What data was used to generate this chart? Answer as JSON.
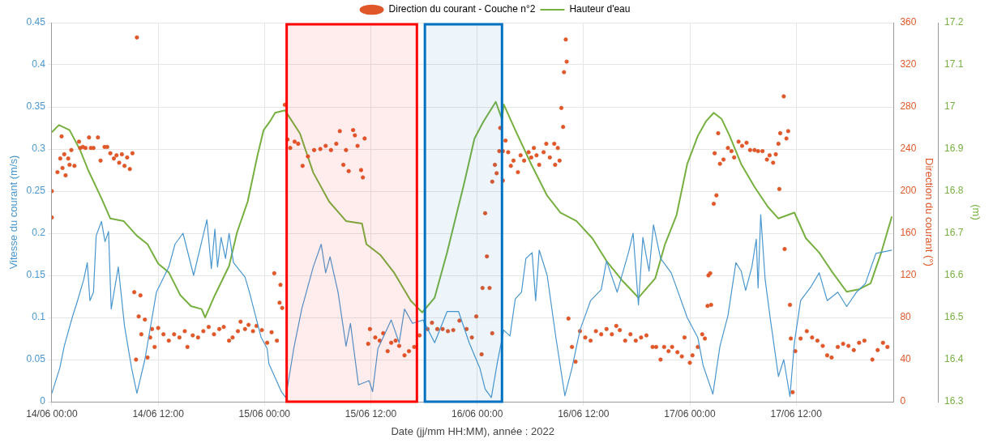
{
  "chart_data": {
    "type": "line",
    "xlabel": "Date (jj/mm HH:MM), année : 2022",
    "ylabel": "Vitesse du courant (m/s)",
    "y2label": "Direction du courant (°)",
    "y3label": "(m)",
    "xlim": [
      "2022-06-14T00:00",
      "2022-06-17T23:00"
    ],
    "xticks": [
      {
        "value": "2022-06-14T00:00",
        "label": "14/06 00:00"
      },
      {
        "value": "2022-06-14T12:00",
        "label": "14/06 12:00"
      },
      {
        "value": "2022-06-15T00:00",
        "label": "15/06 00:00"
      },
      {
        "value": "2022-06-15T12:00",
        "label": "15/06 12:00"
      },
      {
        "value": "2022-06-16T00:00",
        "label": "16/06 00:00"
      },
      {
        "value": "2022-06-16T12:00",
        "label": "16/06 12:00"
      },
      {
        "value": "2022-06-17T00:00",
        "label": "17/06 00:00"
      },
      {
        "value": "2022-06-17T12:00",
        "label": "17/06 12:00"
      }
    ],
    "ylim": [
      0,
      0.45
    ],
    "yticks": [
      0,
      0.05,
      0.1,
      0.15,
      0.2,
      0.25,
      0.3,
      0.35,
      0.4,
      0.45
    ],
    "y2lim": [
      0,
      360
    ],
    "y2ticks": [
      0,
      40,
      80,
      120,
      160,
      200,
      240,
      280,
      320,
      360
    ],
    "y3lim": [
      16.3,
      17.2
    ],
    "y3ticks": [
      16.3,
      16.4,
      16.5,
      16.6,
      16.7,
      16.8,
      16.9,
      17,
      17.1,
      17.2
    ],
    "grid": true,
    "legend": "top",
    "bands": [
      {
        "axis": "x",
        "from": "2022-06-15T02:30",
        "to": "2022-06-15T17:12",
        "color": "#ff0000"
      },
      {
        "axis": "x",
        "from": "2022-06-15T18:06",
        "to": "2022-06-16T02:48",
        "color": "#0070c0"
      }
    ],
    "series": [
      {
        "type": "line",
        "color": "#4a97cf",
        "x": [
          "2022-06-14T00:00",
          "2022-06-14T00:54",
          "2022-06-14T01:24",
          "2022-06-14T02:18",
          "2022-06-14T02:54",
          "2022-06-14T03:36",
          "2022-06-14T04:00",
          "2022-06-14T04:18",
          "2022-06-14T04:42",
          "2022-06-14T05:00",
          "2022-06-14T05:36",
          "2022-06-14T06:00",
          "2022-06-14T06:24",
          "2022-06-14T06:42",
          "2022-06-14T07:30",
          "2022-06-14T08:12",
          "2022-06-14T09:00",
          "2022-06-14T09:36",
          "2022-06-14T10:30",
          "2022-06-14T11:48",
          "2022-06-14T13:12",
          "2022-06-14T13:54",
          "2022-06-14T14:48",
          "2022-06-14T16:00",
          "2022-06-14T17:30",
          "2022-06-14T18:00",
          "2022-06-14T18:24",
          "2022-06-14T18:42",
          "2022-06-14T19:06",
          "2022-06-14T19:36",
          "2022-06-14T20:00",
          "2022-06-14T20:30",
          "2022-06-14T21:48",
          "2022-06-14T22:18",
          "2022-06-14T23:36",
          "2022-06-15T00:18",
          "2022-06-15T00:30",
          "2022-06-15T01:54",
          "2022-06-15T02:24",
          "2022-06-15T03:18",
          "2022-06-15T04:12",
          "2022-06-15T05:30",
          "2022-06-15T06:24",
          "2022-06-15T06:54",
          "2022-06-15T07:24",
          "2022-06-15T08:18",
          "2022-06-15T09:12",
          "2022-06-15T09:42",
          "2022-06-15T10:36",
          "2022-06-15T11:48",
          "2022-06-15T12:12",
          "2022-06-15T12:48",
          "2022-06-15T14:18",
          "2022-06-15T15:12",
          "2022-06-15T15:48",
          "2022-06-15T16:42",
          "2022-06-15T17:54",
          "2022-06-15T19:12",
          "2022-06-15T20:36",
          "2022-06-15T21:54",
          "2022-06-15T23:06",
          "2022-06-16T00:18",
          "2022-06-16T00:54",
          "2022-06-16T01:36",
          "2022-06-16T02:18",
          "2022-06-16T03:00",
          "2022-06-16T03:42",
          "2022-06-16T04:18",
          "2022-06-16T05:00",
          "2022-06-16T05:30",
          "2022-06-16T06:12",
          "2022-06-16T06:36",
          "2022-06-16T07:00",
          "2022-06-16T07:54",
          "2022-06-16T08:54",
          "2022-06-16T09:54",
          "2022-06-16T10:42",
          "2022-06-16T11:36",
          "2022-06-16T12:48",
          "2022-06-16T14:00",
          "2022-06-16T14:36",
          "2022-06-16T15:48",
          "2022-06-16T17:06",
          "2022-06-16T17:36",
          "2022-06-16T18:12",
          "2022-06-16T18:42",
          "2022-06-16T19:24",
          "2022-06-16T19:54",
          "2022-06-16T20:42",
          "2022-06-16T21:54",
          "2022-06-16T23:42",
          "2022-06-17T00:54",
          "2022-06-17T01:30",
          "2022-06-17T02:36",
          "2022-06-17T03:24",
          "2022-06-17T04:18",
          "2022-06-17T05:12",
          "2022-06-17T05:48",
          "2022-06-17T06:18",
          "2022-06-17T07:00",
          "2022-06-17T07:30",
          "2022-06-17T07:42",
          "2022-06-17T08:00",
          "2022-06-17T08:30",
          "2022-06-17T09:06",
          "2022-06-17T10:00",
          "2022-06-17T10:36",
          "2022-06-17T11:18",
          "2022-06-17T11:48",
          "2022-06-17T12:30",
          "2022-06-17T13:42",
          "2022-06-17T14:36",
          "2022-06-17T15:30",
          "2022-06-17T16:42",
          "2022-06-17T17:42",
          "2022-06-17T18:48",
          "2022-06-17T19:48",
          "2022-06-17T21:00",
          "2022-06-17T22:48"
        ],
        "values": [
          0.01,
          0.04,
          0.066,
          0.1,
          0.12,
          0.145,
          0.165,
          0.12,
          0.13,
          0.197,
          0.214,
          0.19,
          0.202,
          0.11,
          0.16,
          0.09,
          0.04,
          0.01,
          0.05,
          0.13,
          0.16,
          0.187,
          0.2,
          0.15,
          0.216,
          0.158,
          0.205,
          0.16,
          0.195,
          0.17,
          0.2,
          0.165,
          0.148,
          0.13,
          0.077,
          0.063,
          0.045,
          0.012,
          0.005,
          0.063,
          0.11,
          0.16,
          0.187,
          0.153,
          0.172,
          0.13,
          0.066,
          0.093,
          0.02,
          0.025,
          0.012,
          0.063,
          0.097,
          0.07,
          0.11,
          0.093,
          0.097,
          0.07,
          0.107,
          0.107,
          0.07,
          0.04,
          0.015,
          0.005,
          0.048,
          0.085,
          0.078,
          0.122,
          0.13,
          0.17,
          0.177,
          0.12,
          0.18,
          0.15,
          0.075,
          0.007,
          0.04,
          0.085,
          0.12,
          0.133,
          0.167,
          0.13,
          0.178,
          0.2,
          0.115,
          0.195,
          0.155,
          0.21,
          0.17,
          0.153,
          0.1,
          0.076,
          0.043,
          0.009,
          0.066,
          0.102,
          0.165,
          0.155,
          0.132,
          0.16,
          0.193,
          0.135,
          0.222,
          0.145,
          0.097,
          0.03,
          0.05,
          0.006,
          0.07,
          0.12,
          0.137,
          0.153,
          0.12,
          0.13,
          0.113,
          0.13,
          0.14,
          0.176,
          0.18
        ]
      },
      {
        "type": "scatter",
        "name": "Direction du courant - Couche n°2",
        "color": "#e0582a",
        "axis": "y2",
        "marker": "circle",
        "x": [
          "2022-06-14T00:00",
          "2022-06-14T00:00",
          "2022-06-14T00:38",
          "2022-06-14T00:57",
          "2022-06-14T01:06",
          "2022-06-14T01:12",
          "2022-06-14T01:24",
          "2022-06-14T01:33",
          "2022-06-14T01:51",
          "2022-06-14T02:00",
          "2022-06-14T02:12",
          "2022-06-14T02:33",
          "2022-06-14T03:04",
          "2022-06-14T03:12",
          "2022-06-14T03:30",
          "2022-06-14T03:48",
          "2022-06-14T04:12",
          "2022-06-14T04:24",
          "2022-06-14T04:42",
          "2022-06-14T05:12",
          "2022-06-14T05:30",
          "2022-06-14T05:57",
          "2022-06-14T06:15",
          "2022-06-14T06:36",
          "2022-06-14T07:00",
          "2022-06-14T07:18",
          "2022-06-14T07:36",
          "2022-06-14T07:54",
          "2022-06-14T08:12",
          "2022-06-14T08:30",
          "2022-06-14T08:48",
          "2022-06-14T09:06",
          "2022-06-14T09:36",
          "2022-06-14T09:18",
          "2022-06-14T10:00",
          "2022-06-14T09:48",
          "2022-06-14T09:30",
          "2022-06-14T10:30",
          "2022-06-14T10:06",
          "2022-06-14T10:48",
          "2022-06-14T11:06",
          "2022-06-14T11:18",
          "2022-06-14T11:36",
          "2022-06-14T12:00",
          "2022-06-14T12:36",
          "2022-06-14T13:12",
          "2022-06-14T13:48",
          "2022-06-14T14:24",
          "2022-06-14T15:00",
          "2022-06-14T15:18",
          "2022-06-14T15:54",
          "2022-06-14T16:30",
          "2022-06-14T17:06",
          "2022-06-14T17:42",
          "2022-06-14T18:18",
          "2022-06-14T18:54",
          "2022-06-14T19:24",
          "2022-06-14T20:00",
          "2022-06-14T20:24",
          "2022-06-14T21:00",
          "2022-06-14T21:18",
          "2022-06-14T21:48",
          "2022-06-14T22:12",
          "2022-06-14T22:42",
          "2022-06-14T23:06",
          "2022-06-14T23:42",
          "2022-06-15T00:18",
          "2022-06-15T00:48",
          "2022-06-15T01:24",
          "2022-06-15T01:06",
          "2022-06-15T01:48",
          "2022-06-15T01:42",
          "2022-06-15T02:00",
          "2022-06-15T02:18",
          "2022-06-15T02:36",
          "2022-06-15T02:54",
          "2022-06-15T03:24",
          "2022-06-15T03:48",
          "2022-06-15T04:18",
          "2022-06-15T04:54",
          "2022-06-15T05:36",
          "2022-06-15T06:18",
          "2022-06-15T06:54",
          "2022-06-15T07:30",
          "2022-06-15T08:06",
          "2022-06-15T08:30",
          "2022-06-15T08:54",
          "2022-06-15T09:12",
          "2022-06-15T09:30",
          "2022-06-15T10:00",
          "2022-06-15T10:12",
          "2022-06-15T10:30",
          "2022-06-15T10:54",
          "2022-06-15T11:06",
          "2022-06-15T11:18",
          "2022-06-15T11:42",
          "2022-06-15T11:54",
          "2022-06-15T12:30",
          "2022-06-15T13:00",
          "2022-06-15T13:24",
          "2022-06-15T13:54",
          "2022-06-15T14:18",
          "2022-06-15T14:48",
          "2022-06-15T15:12",
          "2022-06-15T15:48",
          "2022-06-15T16:18",
          "2022-06-15T16:54",
          "2022-06-15T17:30",
          "2022-06-15T18:24",
          "2022-06-15T18:54",
          "2022-06-15T19:30",
          "2022-06-15T20:06",
          "2022-06-15T20:42",
          "2022-06-15T21:18",
          "2022-06-15T22:00",
          "2022-06-15T22:48",
          "2022-06-15T23:24",
          "2022-06-15T23:54",
          "2022-06-16T00:30",
          "2022-06-16T00:36",
          "2022-06-16T01:24",
          "2022-06-16T01:06",
          "2022-06-16T00:54",
          "2022-06-16T01:42",
          "2022-06-16T02:00",
          "2022-06-16T02:12",
          "2022-06-16T02:30",
          "2022-06-16T02:36",
          "2022-06-16T01:42",
          "2022-06-16T02:54",
          "2022-06-16T02:54",
          "2022-06-16T03:12",
          "2022-06-16T03:30",
          "2022-06-16T03:48",
          "2022-06-16T04:06",
          "2022-06-16T04:36",
          "2022-06-16T04:54",
          "2022-06-16T05:18",
          "2022-06-16T05:48",
          "2022-06-16T06:06",
          "2022-06-16T06:24",
          "2022-06-16T06:42",
          "2022-06-16T07:00",
          "2022-06-16T07:30",
          "2022-06-16T07:48",
          "2022-06-16T08:12",
          "2022-06-16T08:42",
          "2022-06-16T09:06",
          "2022-06-16T08:48",
          "2022-06-16T09:18",
          "2022-06-16T09:30",
          "2022-06-16T09:42",
          "2022-06-16T09:48",
          "2022-06-16T10:06",
          "2022-06-16T10:00",
          "2022-06-16T10:18",
          "2022-06-16T10:42",
          "2022-06-16T11:06",
          "2022-06-16T11:36",
          "2022-06-16T12:12",
          "2022-06-16T12:48",
          "2022-06-16T13:24",
          "2022-06-16T14:00",
          "2022-06-16T14:36",
          "2022-06-16T15:12",
          "2022-06-16T15:42",
          "2022-06-16T16:06",
          "2022-06-16T16:42",
          "2022-06-16T17:18",
          "2022-06-16T17:54",
          "2022-06-16T18:30",
          "2022-06-16T19:06",
          "2022-06-16T19:48",
          "2022-06-16T20:12",
          "2022-06-16T20:42",
          "2022-06-16T21:06",
          "2022-06-16T21:36",
          "2022-06-16T22:00",
          "2022-06-16T22:36",
          "2022-06-16T23:06",
          "2022-06-16T23:24",
          "2022-06-17T00:00",
          "2022-06-17T00:18",
          "2022-06-17T00:54",
          "2022-06-17T01:24",
          "2022-06-17T01:42",
          "2022-06-17T02:00",
          "2022-06-17T02:24",
          "2022-06-17T02:06",
          "2022-06-17T02:18",
          "2022-06-17T02:42",
          "2022-06-17T03:00",
          "2022-06-17T02:48",
          "2022-06-17T03:12",
          "2022-06-17T03:24",
          "2022-06-17T03:48",
          "2022-06-17T04:18",
          "2022-06-17T04:42",
          "2022-06-17T05:00",
          "2022-06-17T05:30",
          "2022-06-17T05:54",
          "2022-06-17T06:24",
          "2022-06-17T06:48",
          "2022-06-17T07:18",
          "2022-06-17T07:42",
          "2022-06-17T08:12",
          "2022-06-17T08:42",
          "2022-06-17T09:00",
          "2022-06-17T09:24",
          "2022-06-17T09:42",
          "2022-06-17T10:00",
          "2022-06-17T10:12",
          "2022-06-17T10:36",
          "2022-06-17T10:06",
          "2022-06-17T10:42",
          "2022-06-17T10:54",
          "2022-06-17T11:06",
          "2022-06-17T11:18",
          "2022-06-17T11:36",
          "2022-06-17T11:24",
          "2022-06-17T11:54",
          "2022-06-17T12:30",
          "2022-06-17T13:12",
          "2022-06-17T13:48",
          "2022-06-17T14:24",
          "2022-06-17T15:00",
          "2022-06-17T15:30",
          "2022-06-17T16:00",
          "2022-06-17T16:42",
          "2022-06-17T17:18",
          "2022-06-17T17:54",
          "2022-06-17T18:30",
          "2022-06-17T19:06",
          "2022-06-17T19:42",
          "2022-06-17T20:36",
          "2022-06-17T21:12",
          "2022-06-17T21:48",
          "2022-06-17T22:18"
        ],
        "values": [
          175,
          200,
          218,
          231,
          252,
          222,
          235,
          215,
          231,
          225,
          239,
          224,
          247,
          241,
          242,
          241,
          251,
          241,
          241,
          251,
          229,
          242,
          242,
          236,
          231,
          234,
          227,
          235,
          224,
          232,
          221,
          236,
          346,
          104,
          101,
          81,
          40,
          78,
          64,
          42,
          61,
          69,
          52,
          70,
          64,
          58,
          64,
          61,
          67,
          52,
          63,
          61,
          67,
          71,
          64,
          69,
          71,
          58,
          61,
          67,
          76,
          69,
          73,
          67,
          72,
          68,
          56,
          66,
          58,
          122,
          111,
          94,
          89,
          282,
          249,
          241,
          247,
          245,
          224,
          233,
          239,
          240,
          243,
          239,
          245,
          257,
          225,
          239,
          219,
          258,
          253,
          243,
          220,
          213,
          250,
          55,
          69,
          61,
          58,
          65,
          48,
          56,
          58,
          53,
          44,
          48,
          52,
          63,
          69,
          75,
          69,
          69,
          67,
          68,
          77,
          69,
          61,
          81,
          45,
          108,
          108,
          138,
          179,
          209,
          225,
          217,
          238,
          260,
          65,
          238,
          210,
          248,
          237,
          224,
          229,
          218,
          234,
          229,
          237,
          232,
          241,
          234,
          225,
          237,
          245,
          232,
          245,
          241,
          225,
          229,
          279,
          261,
          313,
          323,
          344,
          79,
          52,
          38,
          67,
          61,
          58,
          67,
          64,
          69,
          64,
          72,
          68,
          58,
          64,
          58,
          61,
          63,
          52,
          52,
          40,
          52,
          48,
          52,
          47,
          43,
          61,
          37,
          44,
          52,
          64,
          60,
          91,
          92,
          120,
          122,
          188,
          196,
          236,
          255,
          226,
          230,
          241,
          238,
          232,
          247,
          243,
          246,
          239,
          239,
          238,
          238,
          230,
          234,
          227,
          235,
          245,
          255,
          290,
          202,
          145,
          250,
          257,
          92,
          9,
          60,
          48,
          60,
          67,
          61,
          58,
          53,
          44,
          42,
          52,
          55,
          53,
          49,
          56,
          58,
          40,
          49,
          56,
          52
        ]
      },
      {
        "type": "line",
        "name": "Hauteur d'eau",
        "color": "#77b041",
        "axis": "y3",
        "x": [
          "2022-06-14T00:00",
          "2022-06-14T00:48",
          "2022-06-14T02:00",
          "2022-06-14T03:12",
          "2022-06-14T04:06",
          "2022-06-14T05:36",
          "2022-06-14T06:36",
          "2022-06-14T08:06",
          "2022-06-14T09:36",
          "2022-06-14T10:48",
          "2022-06-14T12:00",
          "2022-06-14T13:12",
          "2022-06-14T14:30",
          "2022-06-14T15:42",
          "2022-06-14T16:54",
          "2022-06-14T17:18",
          "2022-06-14T18:24",
          "2022-06-14T20:00",
          "2022-06-14T20:54",
          "2022-06-14T22:06",
          "2022-06-14T23:12",
          "2022-06-14T23:54",
          "2022-06-15T00:36",
          "2022-06-15T01:12",
          "2022-06-15T02:18",
          "2022-06-15T04:00",
          "2022-06-15T05:30",
          "2022-06-15T07:18",
          "2022-06-15T09:12",
          "2022-06-15T11:00",
          "2022-06-15T11:30",
          "2022-06-15T13:06",
          "2022-06-15T14:36",
          "2022-06-15T16:30",
          "2022-06-15T17:48",
          "2022-06-15T19:12",
          "2022-06-15T20:36",
          "2022-06-15T22:30",
          "2022-06-15T23:42",
          "2022-06-16T00:42",
          "2022-06-16T02:06",
          "2022-06-16T02:48",
          "2022-06-16T03:00",
          "2022-06-16T04:18",
          "2022-06-16T06:06",
          "2022-06-16T07:54",
          "2022-06-16T09:24",
          "2022-06-16T11:12",
          "2022-06-16T13:00",
          "2022-06-16T14:36",
          "2022-06-16T16:24",
          "2022-06-16T18:12",
          "2022-06-16T20:06",
          "2022-06-16T21:12",
          "2022-06-16T22:30",
          "2022-06-16T23:42",
          "2022-06-17T00:54",
          "2022-06-17T01:48",
          "2022-06-17T02:42",
          "2022-06-17T03:36",
          "2022-06-17T04:30",
          "2022-06-17T05:48",
          "2022-06-17T07:18",
          "2022-06-17T08:48",
          "2022-06-17T10:00",
          "2022-06-17T11:48",
          "2022-06-17T13:06",
          "2022-06-17T14:36",
          "2022-06-17T16:06",
          "2022-06-17T17:42",
          "2022-06-17T19:06",
          "2022-06-17T20:24",
          "2022-06-17T21:36",
          "2022-06-17T22:48"
        ],
        "values": [
          16.94,
          16.957,
          16.945,
          16.897,
          16.85,
          16.783,
          16.735,
          16.729,
          16.694,
          16.674,
          16.628,
          16.607,
          16.553,
          16.527,
          16.52,
          16.5,
          16.553,
          16.622,
          16.702,
          16.775,
          16.884,
          16.945,
          16.965,
          16.986,
          16.992,
          16.937,
          16.844,
          16.775,
          16.729,
          16.723,
          16.674,
          16.648,
          16.607,
          16.54,
          16.512,
          16.547,
          16.654,
          16.816,
          16.925,
          16.965,
          17.012,
          16.971,
          17.006,
          16.945,
          16.864,
          16.789,
          16.749,
          16.729,
          16.688,
          16.634,
          16.587,
          16.547,
          16.593,
          16.674,
          16.743,
          16.864,
          16.931,
          16.965,
          16.986,
          16.971,
          16.931,
          16.864,
          16.81,
          16.763,
          16.735,
          16.749,
          16.688,
          16.654,
          16.607,
          16.561,
          16.567,
          16.581,
          16.654,
          16.74
        ]
      }
    ]
  }
}
